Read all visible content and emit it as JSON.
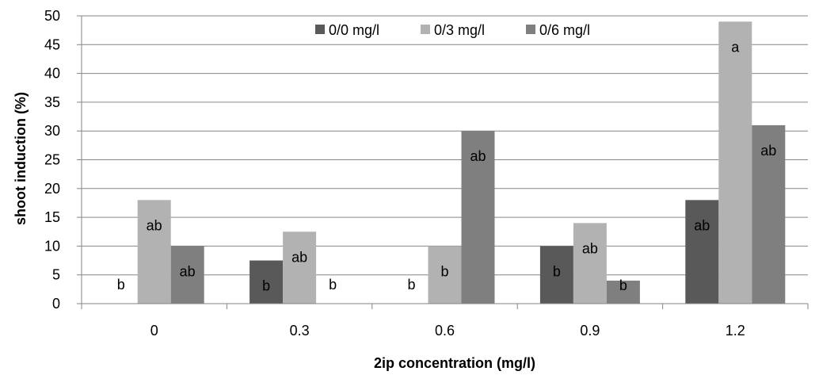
{
  "chart_data": {
    "type": "bar",
    "xlabel": "2ip concentration (mg/l)",
    "ylabel": "shoot induction (%)",
    "ylim": [
      0,
      50
    ],
    "ytick_step": 5,
    "grid": true,
    "legend_position": "top-center",
    "categories": [
      "0",
      "0.3",
      "0.6",
      "0.9",
      "1.2"
    ],
    "series": [
      {
        "name": "0/0 mg/l",
        "color": "#595959",
        "values": [
          0,
          7.5,
          0,
          10,
          18
        ],
        "labels": [
          "b",
          "b",
          "b",
          "b",
          "ab"
        ]
      },
      {
        "name": "0/3 mg/l",
        "color": "#b2b2b2",
        "values": [
          18,
          12.5,
          10,
          14,
          49
        ],
        "labels": [
          "ab",
          "ab",
          "b",
          "ab",
          "a"
        ]
      },
      {
        "name": "0/6 mg/l",
        "color": "#7f7f7f",
        "values": [
          10,
          0,
          30,
          4,
          31
        ],
        "labels": [
          "ab",
          "b",
          "ab",
          "b",
          "ab"
        ]
      }
    ]
  }
}
